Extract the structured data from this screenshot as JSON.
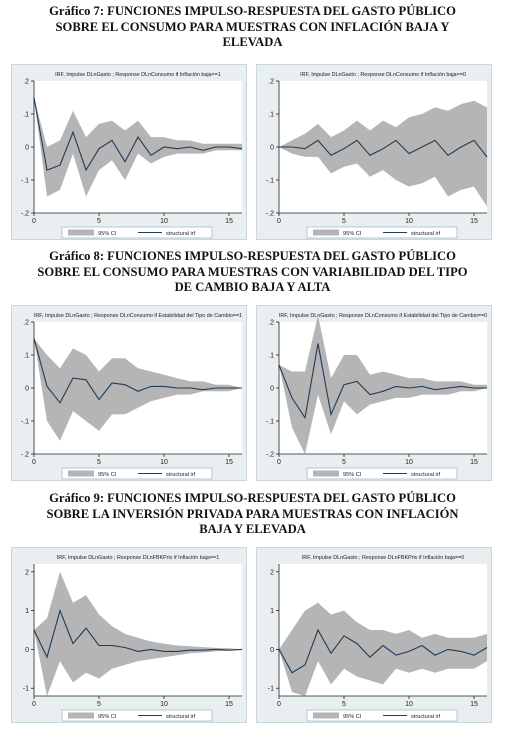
{
  "sections": [
    {
      "lines": [
        "Gráfico 7: FUNCIONES IMPULSO-RESPUESTA DEL GASTO PÚBLICO",
        "SOBRE EL CONSUMO PARA MUESTRAS CON INFLACIÓN BAJA Y",
        "ELEVADA"
      ]
    },
    {
      "lines": [
        "Gráfico 8: FUNCIONES IMPULSO-RESPUESTA DEL GASTO PÚBLICO",
        "SOBRE EL CONSUMO PARA MUESTRAS CON VARIABILIDAD DEL TIPO",
        "DE CAMBIO BAJA Y ALTA"
      ]
    },
    {
      "lines": [
        "Gráfico 9: FUNCIONES IMPULSO-RESPUESTA DEL GASTO PÚBLICO",
        "SOBRE LA INVERSIÓN PRIVADA PARA MUESTRAS CON INFLACIÓN",
        "BAJA Y ELEVADA"
      ]
    }
  ],
  "chart_data": [
    {
      "type": "area",
      "title": "IRF, Impulse DLnGasto ; Response DLnConsumo if Inflación baja==1",
      "x": [
        0,
        1,
        2,
        3,
        4,
        5,
        6,
        7,
        8,
        9,
        10,
        11,
        12,
        13,
        14,
        15,
        16
      ],
      "series": [
        {
          "name": "95% CI",
          "lower": [
            0.15,
            -0.15,
            -0.13,
            -0.02,
            -0.15,
            -0.07,
            -0.04,
            -0.1,
            -0.02,
            -0.05,
            -0.03,
            -0.02,
            -0.02,
            -0.02,
            -0.01,
            -0.01,
            -0.01
          ],
          "upper": [
            0.15,
            0.0,
            0.02,
            0.11,
            0.03,
            0.07,
            0.08,
            0.05,
            0.08,
            0.03,
            0.03,
            0.02,
            0.02,
            0.01,
            0.01,
            0.01,
            0.01
          ]
        },
        {
          "name": "structural irf",
          "values": [
            0.15,
            -0.07,
            -0.055,
            0.045,
            -0.07,
            -0.005,
            0.02,
            -0.045,
            0.03,
            -0.025,
            0.0,
            -0.005,
            0.0,
            -0.01,
            0.0,
            0.0,
            -0.005
          ]
        }
      ],
      "yticks": [
        ".2",
        ".1",
        "0",
        "-.1",
        "-.2"
      ],
      "xticks": [
        "0",
        "5",
        "10",
        "15"
      ],
      "ylim": [
        -0.2,
        0.2
      ],
      "xlim": [
        0,
        16
      ],
      "legend": "bottom"
    },
    {
      "type": "area",
      "title": "IRF, Impulse DLnGasto ; Response DLnConsumo if Inflación baja==0",
      "x": [
        0,
        1,
        2,
        3,
        4,
        5,
        6,
        7,
        8,
        9,
        10,
        11,
        12,
        13,
        14,
        15,
        16
      ],
      "series": [
        {
          "name": "95% CI",
          "lower": [
            0.0,
            -0.02,
            -0.03,
            -0.03,
            -0.08,
            -0.06,
            -0.05,
            -0.09,
            -0.07,
            -0.1,
            -0.12,
            -0.11,
            -0.09,
            -0.15,
            -0.13,
            -0.12,
            -0.18
          ],
          "upper": [
            0.0,
            0.02,
            0.04,
            0.07,
            0.03,
            0.05,
            0.08,
            0.05,
            0.08,
            0.06,
            0.09,
            0.1,
            0.12,
            0.11,
            0.13,
            0.14,
            0.12
          ]
        },
        {
          "name": "structural irf",
          "values": [
            0.0,
            0.0,
            -0.005,
            0.02,
            -0.025,
            -0.005,
            0.02,
            -0.025,
            -0.005,
            0.02,
            -0.02,
            0.0,
            0.02,
            -0.025,
            0.0,
            0.02,
            -0.03
          ]
        }
      ],
      "yticks": [
        ".2",
        ".1",
        "0",
        "-.1",
        "-.2"
      ],
      "xticks": [
        "0",
        "5",
        "10",
        "15"
      ],
      "ylim": [
        -0.2,
        0.2
      ],
      "xlim": [
        0,
        16
      ],
      "legend": "bottom"
    },
    {
      "type": "area",
      "title": "IRF, Impulse DLnGasto ; Response DLnConsumo if Estabilidad del Tipo de Cambio==1",
      "x": [
        0,
        1,
        2,
        3,
        4,
        5,
        6,
        7,
        8,
        9,
        10,
        11,
        12,
        13,
        14,
        15,
        16
      ],
      "series": [
        {
          "name": "95% CI",
          "lower": [
            0.15,
            -0.1,
            -0.16,
            -0.07,
            -0.1,
            -0.13,
            -0.08,
            -0.08,
            -0.06,
            -0.04,
            -0.03,
            -0.02,
            -0.02,
            -0.01,
            -0.01,
            -0.01,
            0.0
          ],
          "upper": [
            0.15,
            0.1,
            0.06,
            0.12,
            0.1,
            0.05,
            0.09,
            0.09,
            0.06,
            0.05,
            0.04,
            0.03,
            0.02,
            0.02,
            0.01,
            0.01,
            0.0
          ]
        },
        {
          "name": "structural irf",
          "values": [
            0.15,
            0.005,
            -0.045,
            0.03,
            0.025,
            -0.035,
            0.015,
            0.01,
            -0.01,
            0.005,
            0.005,
            0.0,
            0.0,
            -0.005,
            0.0,
            0.0,
            0.0
          ]
        }
      ],
      "yticks": [
        ".2",
        ".1",
        "0",
        "-.1",
        "-.2"
      ],
      "xticks": [
        "0",
        "5",
        "10",
        "15"
      ],
      "ylim": [
        -0.2,
        0.2
      ],
      "xlim": [
        0,
        16
      ],
      "legend": "bottom"
    },
    {
      "type": "area",
      "title": "IRF, Impulse DLnGasto ; Response DLnConsumo if Estabilidad del Tipo de Cambio==0",
      "x": [
        0,
        1,
        2,
        3,
        4,
        5,
        6,
        7,
        8,
        9,
        10,
        11,
        12,
        13,
        14,
        15,
        16
      ],
      "series": [
        {
          "name": "95% CI",
          "lower": [
            0.07,
            -0.12,
            -0.2,
            -0.02,
            -0.14,
            -0.04,
            -0.08,
            -0.05,
            -0.04,
            -0.03,
            -0.03,
            -0.02,
            -0.02,
            -0.02,
            -0.01,
            -0.01,
            0.0
          ],
          "upper": [
            0.07,
            0.05,
            0.05,
            0.22,
            0.03,
            0.1,
            0.1,
            0.04,
            0.05,
            0.04,
            0.03,
            0.03,
            0.02,
            0.02,
            0.02,
            0.01,
            0.01
          ]
        },
        {
          "name": "structural irf",
          "values": [
            0.07,
            -0.03,
            -0.09,
            0.135,
            -0.08,
            0.01,
            0.02,
            -0.02,
            -0.01,
            0.005,
            0.0,
            0.005,
            -0.005,
            0.0,
            0.005,
            0.0,
            0.0
          ]
        }
      ],
      "yticks": [
        ".2",
        ".1",
        "0",
        "-.1",
        "-.2"
      ],
      "xticks": [
        "0",
        "5",
        "10",
        "15"
      ],
      "ylim": [
        -0.2,
        0.2
      ],
      "xlim": [
        0,
        16
      ],
      "legend": "bottom"
    },
    {
      "type": "area",
      "title": "IRF, Impulse DLnGasto ; Response DLnFBKPriv if Inflación baja==1",
      "x": [
        0,
        1,
        2,
        3,
        4,
        5,
        6,
        7,
        8,
        9,
        10,
        11,
        12,
        13,
        14,
        15,
        16
      ],
      "series": [
        {
          "name": "95% CI",
          "lower": [
            0.5,
            -1.2,
            -0.3,
            -0.85,
            -0.6,
            -0.75,
            -0.5,
            -0.4,
            -0.3,
            -0.25,
            -0.2,
            -0.15,
            -0.1,
            -0.08,
            -0.05,
            -0.03,
            0.0
          ],
          "upper": [
            0.5,
            0.8,
            2.0,
            1.2,
            1.4,
            0.9,
            0.6,
            0.4,
            0.3,
            0.2,
            0.15,
            0.1,
            0.08,
            0.06,
            0.04,
            0.03,
            0.0
          ]
        },
        {
          "name": "structural irf",
          "values": [
            0.5,
            -0.2,
            1.0,
            0.15,
            0.55,
            0.1,
            0.1,
            0.05,
            -0.05,
            0.0,
            -0.05,
            -0.05,
            -0.02,
            -0.02,
            0.0,
            -0.02,
            0.0
          ]
        }
      ],
      "yticks": [
        "2",
        "1",
        "0",
        "-1"
      ],
      "xticks": [
        "0",
        "5",
        "10",
        "15"
      ],
      "ylim": [
        -1.2,
        2.2
      ],
      "xlim": [
        0,
        16
      ],
      "legend": "bottom"
    },
    {
      "type": "area",
      "title": "IRF, Impulse DLnGasto ; Response DLnFBKPriv if Inflación baja==0",
      "x": [
        0,
        1,
        2,
        3,
        4,
        5,
        6,
        7,
        8,
        9,
        10,
        11,
        12,
        13,
        14,
        15,
        16
      ],
      "series": [
        {
          "name": "95% CI",
          "lower": [
            0.0,
            -1.1,
            -1.2,
            -0.3,
            -0.9,
            -0.5,
            -0.7,
            -0.8,
            -0.9,
            -0.5,
            -0.6,
            -0.5,
            -0.6,
            -0.5,
            -0.5,
            -0.5,
            -0.3
          ],
          "upper": [
            0.0,
            0.5,
            1.0,
            1.2,
            0.9,
            1.0,
            0.7,
            0.5,
            0.5,
            0.4,
            0.5,
            0.3,
            0.4,
            0.3,
            0.3,
            0.3,
            0.4
          ]
        },
        {
          "name": "structural irf",
          "values": [
            0.0,
            -0.6,
            -0.4,
            0.5,
            -0.1,
            0.35,
            0.15,
            -0.2,
            0.1,
            -0.15,
            -0.05,
            0.1,
            -0.15,
            0.0,
            -0.05,
            -0.15,
            0.05
          ]
        }
      ],
      "yticks": [
        "2",
        "1",
        "0",
        "-1"
      ],
      "xticks": [
        "0",
        "5",
        "10",
        "15"
      ],
      "ylim": [
        -1.2,
        2.2
      ],
      "xlim": [
        0,
        16
      ],
      "legend": "bottom"
    }
  ],
  "legend": {
    "ci_label": "95% CI",
    "line_label": "structural irf"
  },
  "colors": {
    "panel_bg": "#e9eef1",
    "band": "#b5b5b5",
    "line": "#1f3b57"
  }
}
